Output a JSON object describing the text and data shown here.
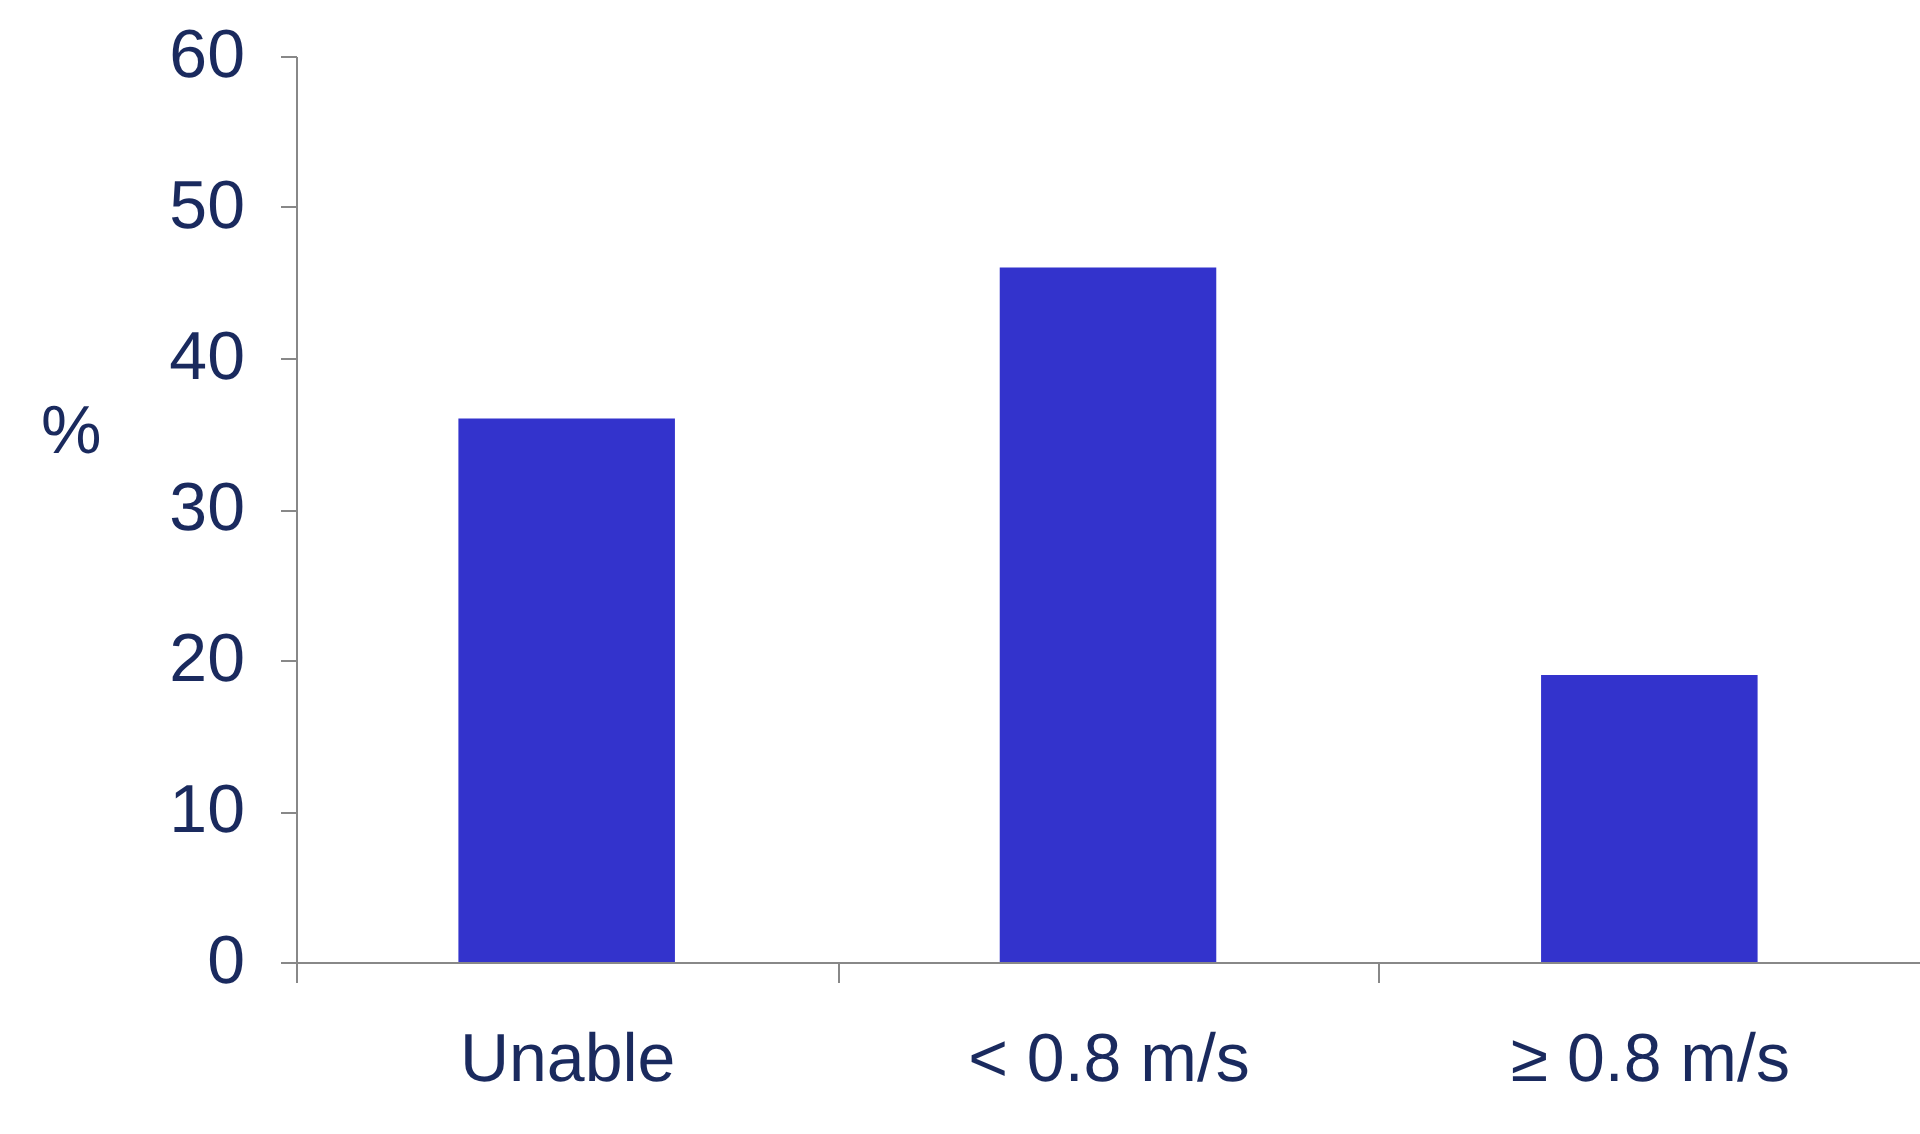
{
  "chart_data": {
    "type": "bar",
    "ylabel": "%",
    "categories": [
      "Unable",
      "< 0.8 m/s",
      "≥ 0.8 m/s"
    ],
    "values": [
      36,
      46,
      19
    ],
    "color": "#3333cc",
    "ylim": [
      0,
      60
    ],
    "yticks": [
      0,
      10,
      20,
      30,
      40,
      50,
      60
    ],
    "grid": false
  }
}
